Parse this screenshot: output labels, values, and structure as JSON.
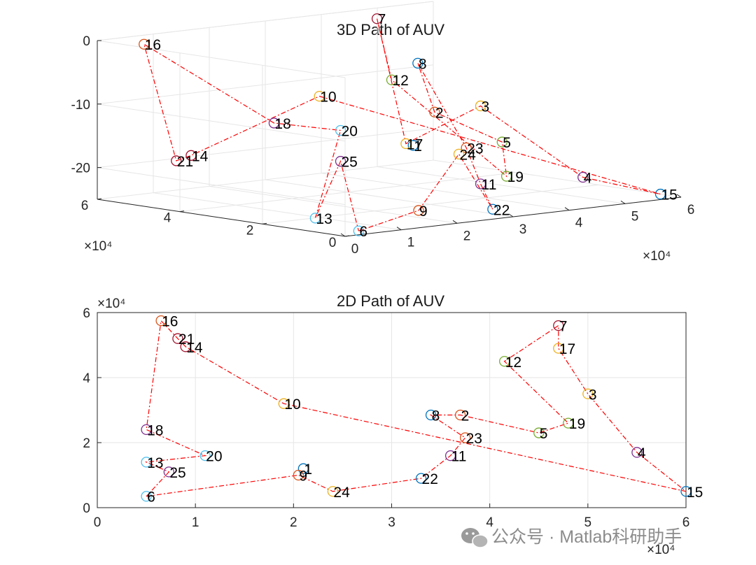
{
  "chart_data": [
    {
      "type": "line",
      "title": "3D Path of AUV",
      "xlabel": "",
      "ylabel": "",
      "zlabel": "",
      "x_exponent_label": "×10⁴",
      "y_exponent_label": "×10⁴",
      "x_ticks": [
        "0",
        "1",
        "2",
        "3",
        "4",
        "5",
        "6"
      ],
      "y_ticks": [
        "0",
        "2",
        "4",
        "6"
      ],
      "z_ticks": [
        "0",
        "-10",
        "-20"
      ],
      "xlim": [
        0,
        60000
      ],
      "ylim": [
        0,
        60000
      ],
      "zlim": [
        -25,
        0
      ],
      "grid": true,
      "points": [
        {
          "label": "1",
          "x": 21000,
          "y": 12000,
          "z": -14
        },
        {
          "label": "2",
          "x": 37000,
          "y": 28500,
          "z": -12
        },
        {
          "label": "3",
          "x": 50000,
          "y": 35000,
          "z": -13
        },
        {
          "label": "4",
          "x": 55000,
          "y": 17000,
          "z": -23
        },
        {
          "label": "5",
          "x": 45000,
          "y": 23000,
          "z": -17
        },
        {
          "label": "6",
          "x": 5000,
          "y": 3500,
          "z": -25
        },
        {
          "label": "7",
          "x": 47000,
          "y": 56000,
          "z": -1
        },
        {
          "label": "8",
          "x": 34000,
          "y": 28500,
          "z": -4
        },
        {
          "label": "9",
          "x": 20500,
          "y": 10000,
          "z": -24
        },
        {
          "label": "10",
          "x": 19000,
          "y": 32000,
          "z": -8
        },
        {
          "label": "11",
          "x": 36000,
          "y": 16000,
          "z": -22
        },
        {
          "label": "12",
          "x": 41500,
          "y": 45000,
          "z": -9
        },
        {
          "label": "13",
          "x": 5000,
          "y": 14000,
          "z": -24
        },
        {
          "label": "14",
          "x": 9000,
          "y": 49500,
          "z": -18
        },
        {
          "label": "15",
          "x": 60000,
          "y": 5000,
          "z": -25
        },
        {
          "label": "16",
          "x": 6500,
          "y": 57500,
          "z": -1
        },
        {
          "label": "17",
          "x": 47000,
          "y": 49000,
          "z": -20
        },
        {
          "label": "18",
          "x": 5000,
          "y": 24000,
          "z": -10
        },
        {
          "label": "19",
          "x": 48000,
          "y": 26000,
          "z": -23
        },
        {
          "label": "20",
          "x": 11000,
          "y": 16000,
          "z": -11
        },
        {
          "label": "21",
          "x": 8200,
          "y": 52000,
          "z": -19
        },
        {
          "label": "22",
          "x": 33000,
          "y": 9000,
          "z": -25
        },
        {
          "label": "23",
          "x": 37500,
          "y": 21500,
          "z": -17
        },
        {
          "label": "24",
          "x": 24000,
          "y": 5000,
          "z": -15
        },
        {
          "label": "25",
          "x": 7300,
          "y": 11000,
          "z": -15
        }
      ],
      "marker_colors": [
        "#0072bd",
        "#d95319",
        "#edb120",
        "#7e2f8e",
        "#77ac30",
        "#4dbeee",
        "#a2142f"
      ],
      "line_color": "#ff0000",
      "line_style": "dash-dot"
    },
    {
      "type": "line",
      "title": "2D Path of AUV",
      "xlabel": "",
      "ylabel": "",
      "x_exponent_label": "×10⁴",
      "y_exponent_label": "×10⁴",
      "x_ticks": [
        "0",
        "1",
        "2",
        "3",
        "4",
        "5",
        "6"
      ],
      "y_ticks": [
        "0",
        "2",
        "4",
        "6"
      ],
      "xlim": [
        0,
        60000
      ],
      "ylim": [
        0,
        60000
      ],
      "grid": true,
      "path_order": [
        "6",
        "9",
        "24",
        "22",
        "11",
        "23",
        "8",
        "2",
        "5",
        "19",
        "12",
        "7",
        "17",
        "3",
        "4",
        "15",
        "10",
        "14",
        "21",
        "16",
        "18",
        "20",
        "13",
        "25",
        "6"
      ],
      "marker_colors": [
        "#0072bd",
        "#d95319",
        "#edb120",
        "#7e2f8e",
        "#77ac30",
        "#4dbeee",
        "#a2142f"
      ],
      "line_color": "#ff0000",
      "line_style": "dash-dot"
    }
  ],
  "watermark": {
    "icon": "wechat-icon",
    "text": "公众号 · Matlab科研助手"
  }
}
